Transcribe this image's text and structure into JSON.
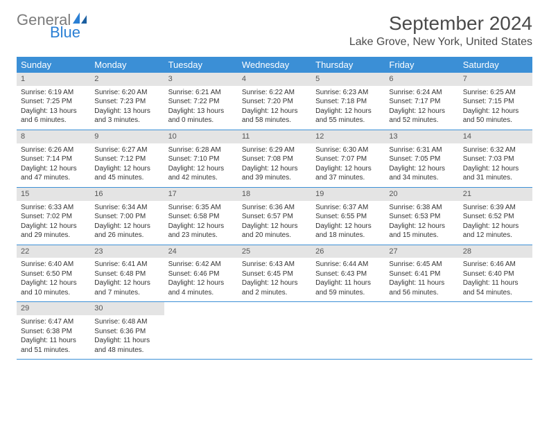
{
  "logo": {
    "top": "General",
    "bottom": "Blue"
  },
  "title": "September 2024",
  "location": "Lake Grove, New York, United States",
  "colors": {
    "header_bg": "#3b8fd6",
    "header_text": "#ffffff",
    "daynum_bg": "#e4e4e4",
    "row_border": "#3b8fd6",
    "logo_gray": "#7b7b7b",
    "logo_blue": "#2a7fd4"
  },
  "day_names": [
    "Sunday",
    "Monday",
    "Tuesday",
    "Wednesday",
    "Thursday",
    "Friday",
    "Saturday"
  ],
  "days": [
    {
      "n": "1",
      "sunrise": "Sunrise: 6:19 AM",
      "sunset": "Sunset: 7:25 PM",
      "daylight": "Daylight: 13 hours and 6 minutes."
    },
    {
      "n": "2",
      "sunrise": "Sunrise: 6:20 AM",
      "sunset": "Sunset: 7:23 PM",
      "daylight": "Daylight: 13 hours and 3 minutes."
    },
    {
      "n": "3",
      "sunrise": "Sunrise: 6:21 AM",
      "sunset": "Sunset: 7:22 PM",
      "daylight": "Daylight: 13 hours and 0 minutes."
    },
    {
      "n": "4",
      "sunrise": "Sunrise: 6:22 AM",
      "sunset": "Sunset: 7:20 PM",
      "daylight": "Daylight: 12 hours and 58 minutes."
    },
    {
      "n": "5",
      "sunrise": "Sunrise: 6:23 AM",
      "sunset": "Sunset: 7:18 PM",
      "daylight": "Daylight: 12 hours and 55 minutes."
    },
    {
      "n": "6",
      "sunrise": "Sunrise: 6:24 AM",
      "sunset": "Sunset: 7:17 PM",
      "daylight": "Daylight: 12 hours and 52 minutes."
    },
    {
      "n": "7",
      "sunrise": "Sunrise: 6:25 AM",
      "sunset": "Sunset: 7:15 PM",
      "daylight": "Daylight: 12 hours and 50 minutes."
    },
    {
      "n": "8",
      "sunrise": "Sunrise: 6:26 AM",
      "sunset": "Sunset: 7:14 PM",
      "daylight": "Daylight: 12 hours and 47 minutes."
    },
    {
      "n": "9",
      "sunrise": "Sunrise: 6:27 AM",
      "sunset": "Sunset: 7:12 PM",
      "daylight": "Daylight: 12 hours and 45 minutes."
    },
    {
      "n": "10",
      "sunrise": "Sunrise: 6:28 AM",
      "sunset": "Sunset: 7:10 PM",
      "daylight": "Daylight: 12 hours and 42 minutes."
    },
    {
      "n": "11",
      "sunrise": "Sunrise: 6:29 AM",
      "sunset": "Sunset: 7:08 PM",
      "daylight": "Daylight: 12 hours and 39 minutes."
    },
    {
      "n": "12",
      "sunrise": "Sunrise: 6:30 AM",
      "sunset": "Sunset: 7:07 PM",
      "daylight": "Daylight: 12 hours and 37 minutes."
    },
    {
      "n": "13",
      "sunrise": "Sunrise: 6:31 AM",
      "sunset": "Sunset: 7:05 PM",
      "daylight": "Daylight: 12 hours and 34 minutes."
    },
    {
      "n": "14",
      "sunrise": "Sunrise: 6:32 AM",
      "sunset": "Sunset: 7:03 PM",
      "daylight": "Daylight: 12 hours and 31 minutes."
    },
    {
      "n": "15",
      "sunrise": "Sunrise: 6:33 AM",
      "sunset": "Sunset: 7:02 PM",
      "daylight": "Daylight: 12 hours and 29 minutes."
    },
    {
      "n": "16",
      "sunrise": "Sunrise: 6:34 AM",
      "sunset": "Sunset: 7:00 PM",
      "daylight": "Daylight: 12 hours and 26 minutes."
    },
    {
      "n": "17",
      "sunrise": "Sunrise: 6:35 AM",
      "sunset": "Sunset: 6:58 PM",
      "daylight": "Daylight: 12 hours and 23 minutes."
    },
    {
      "n": "18",
      "sunrise": "Sunrise: 6:36 AM",
      "sunset": "Sunset: 6:57 PM",
      "daylight": "Daylight: 12 hours and 20 minutes."
    },
    {
      "n": "19",
      "sunrise": "Sunrise: 6:37 AM",
      "sunset": "Sunset: 6:55 PM",
      "daylight": "Daylight: 12 hours and 18 minutes."
    },
    {
      "n": "20",
      "sunrise": "Sunrise: 6:38 AM",
      "sunset": "Sunset: 6:53 PM",
      "daylight": "Daylight: 12 hours and 15 minutes."
    },
    {
      "n": "21",
      "sunrise": "Sunrise: 6:39 AM",
      "sunset": "Sunset: 6:52 PM",
      "daylight": "Daylight: 12 hours and 12 minutes."
    },
    {
      "n": "22",
      "sunrise": "Sunrise: 6:40 AM",
      "sunset": "Sunset: 6:50 PM",
      "daylight": "Daylight: 12 hours and 10 minutes."
    },
    {
      "n": "23",
      "sunrise": "Sunrise: 6:41 AM",
      "sunset": "Sunset: 6:48 PM",
      "daylight": "Daylight: 12 hours and 7 minutes."
    },
    {
      "n": "24",
      "sunrise": "Sunrise: 6:42 AM",
      "sunset": "Sunset: 6:46 PM",
      "daylight": "Daylight: 12 hours and 4 minutes."
    },
    {
      "n": "25",
      "sunrise": "Sunrise: 6:43 AM",
      "sunset": "Sunset: 6:45 PM",
      "daylight": "Daylight: 12 hours and 2 minutes."
    },
    {
      "n": "26",
      "sunrise": "Sunrise: 6:44 AM",
      "sunset": "Sunset: 6:43 PM",
      "daylight": "Daylight: 11 hours and 59 minutes."
    },
    {
      "n": "27",
      "sunrise": "Sunrise: 6:45 AM",
      "sunset": "Sunset: 6:41 PM",
      "daylight": "Daylight: 11 hours and 56 minutes."
    },
    {
      "n": "28",
      "sunrise": "Sunrise: 6:46 AM",
      "sunset": "Sunset: 6:40 PM",
      "daylight": "Daylight: 11 hours and 54 minutes."
    },
    {
      "n": "29",
      "sunrise": "Sunrise: 6:47 AM",
      "sunset": "Sunset: 6:38 PM",
      "daylight": "Daylight: 11 hours and 51 minutes."
    },
    {
      "n": "30",
      "sunrise": "Sunrise: 6:48 AM",
      "sunset": "Sunset: 6:36 PM",
      "daylight": "Daylight: 11 hours and 48 minutes."
    }
  ],
  "first_day_offset": 0,
  "total_cells": 35
}
